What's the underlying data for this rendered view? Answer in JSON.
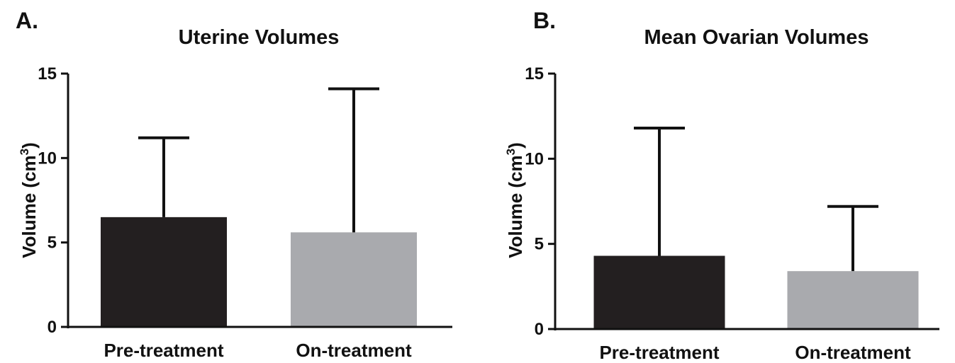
{
  "colors": {
    "pre": "#231f20",
    "on": "#a9aaae",
    "axis": "#111111"
  },
  "charts": [
    {
      "panel_label": "A.",
      "chart_data": {
        "type": "bar",
        "title": "Uterine Volumes",
        "xlabel": "",
        "ylabel": "Volume (cm",
        "ylabel_sup": "3",
        "ylabel_end": ")",
        "categories": [
          "Pre-treatment",
          "On-treatment"
        ],
        "values": [
          6.5,
          5.6
        ],
        "error_upper": [
          11.2,
          14.1
        ],
        "yticks": [
          "0",
          "5",
          "10",
          "15"
        ],
        "ylim": [
          0,
          15
        ],
        "grid": false
      }
    },
    {
      "panel_label": "B.",
      "chart_data": {
        "type": "bar",
        "title": "Mean Ovarian Volumes",
        "xlabel": "",
        "ylabel": "Volume (cm",
        "ylabel_sup": "3",
        "ylabel_end": ")",
        "categories": [
          "Pre-treatment",
          "On-treatment"
        ],
        "values": [
          4.3,
          3.4
        ],
        "error_upper": [
          11.8,
          7.2
        ],
        "yticks": [
          "0",
          "5",
          "10",
          "15"
        ],
        "ylim": [
          0,
          15
        ],
        "grid": false
      }
    }
  ]
}
